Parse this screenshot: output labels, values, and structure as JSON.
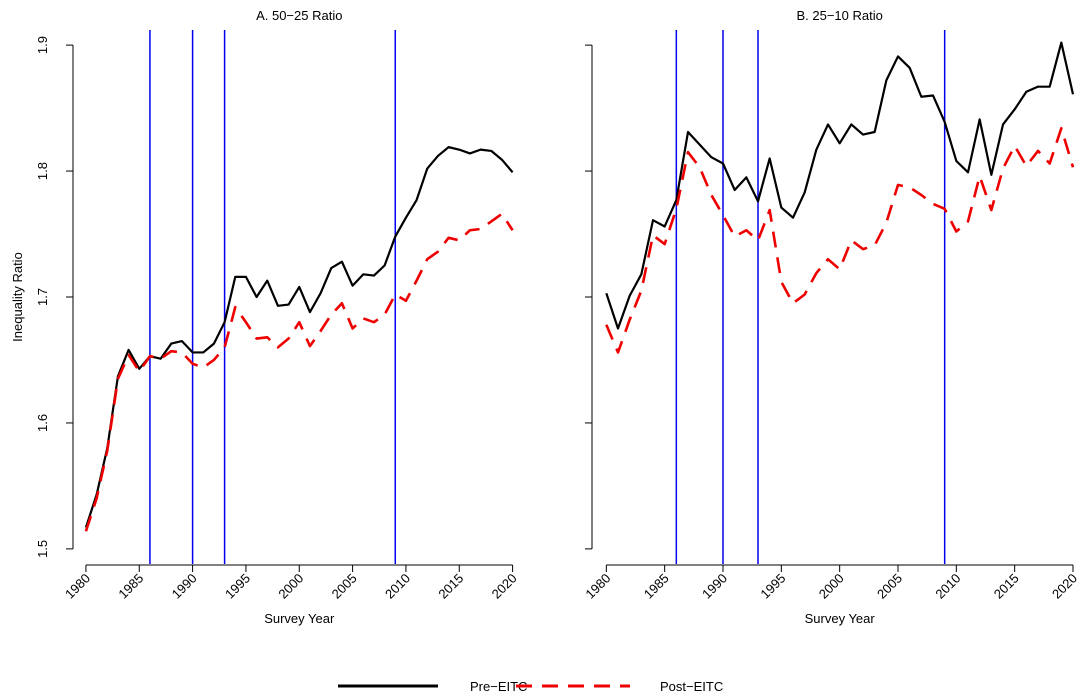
{
  "chart_data": [
    {
      "type": "line",
      "title": "A. 50−25 Ratio",
      "x_label": "Survey Year",
      "y_label": "Inequality Ratio",
      "x": [
        1980,
        1981,
        1982,
        1983,
        1984,
        1985,
        1986,
        1987,
        1988,
        1989,
        1990,
        1991,
        1992,
        1993,
        1994,
        1995,
        1996,
        1997,
        1998,
        1999,
        2000,
        2001,
        2002,
        2003,
        2004,
        2005,
        2006,
        2007,
        2008,
        2009,
        2010,
        2011,
        2012,
        2013,
        2014,
        2015,
        2016,
        2017,
        2018,
        2019,
        2020
      ],
      "xlim": [
        1978.6,
        2020.6
      ],
      "xticks": [
        1980,
        1985,
        1990,
        1995,
        2000,
        2005,
        2010,
        2015,
        2020
      ],
      "ylim": [
        1.488,
        1.912
      ],
      "yticks": [
        1.5,
        1.6,
        1.7,
        1.8,
        1.9
      ],
      "vlines": [
        1986,
        1990,
        1993,
        2009
      ],
      "vline_color": "#0000ee",
      "series": [
        {
          "name": "Pre−EITC",
          "color": "#000000",
          "style": "solid",
          "values": [
            1.517,
            1.543,
            1.58,
            1.637,
            1.658,
            1.643,
            1.653,
            1.651,
            1.663,
            1.665,
            1.656,
            1.656,
            1.663,
            1.68,
            1.716,
            1.716,
            1.7,
            1.713,
            1.693,
            1.694,
            1.708,
            1.688,
            1.703,
            1.723,
            1.728,
            1.709,
            1.718,
            1.717,
            1.725,
            1.748,
            1.763,
            1.777,
            1.802,
            1.812,
            1.819,
            1.817,
            1.814,
            1.817,
            1.816,
            1.809,
            1.799
          ]
        },
        {
          "name": "Post−EITC",
          "color": "#ee0000",
          "style": "dashed",
          "values": [
            1.514,
            1.54,
            1.578,
            1.635,
            1.654,
            1.641,
            1.653,
            1.651,
            1.657,
            1.656,
            1.647,
            1.644,
            1.65,
            1.66,
            1.692,
            1.68,
            1.667,
            1.668,
            1.66,
            1.667,
            1.68,
            1.661,
            1.673,
            1.686,
            1.695,
            1.675,
            1.683,
            1.68,
            1.686,
            1.702,
            1.697,
            1.713,
            1.73,
            1.736,
            1.747,
            1.745,
            1.753,
            1.754,
            1.76,
            1.766,
            1.753
          ]
        }
      ]
    },
    {
      "type": "line",
      "title": "B. 25−10 Ratio",
      "x_label": "Survey Year",
      "x": [
        1980,
        1981,
        1982,
        1983,
        1984,
        1985,
        1986,
        1987,
        1988,
        1989,
        1990,
        1991,
        1992,
        1993,
        1994,
        1995,
        1996,
        1997,
        1998,
        1999,
        2000,
        2001,
        2002,
        2003,
        2004,
        2005,
        2006,
        2007,
        2008,
        2009,
        2010,
        2011,
        2012,
        2013,
        2014,
        2015,
        2016,
        2017,
        2018,
        2019,
        2020
      ],
      "xlim": [
        1978.6,
        2020.6
      ],
      "xticks": [
        1980,
        1985,
        1990,
        1995,
        2000,
        2005,
        2010,
        2015,
        2020
      ],
      "ylim": [
        1.488,
        1.912
      ],
      "vlines": [
        1986,
        1990,
        1993,
        2009
      ],
      "vline_color": "#0000ee",
      "series": [
        {
          "color": "#000000",
          "style": "solid",
          "values": [
            1.703,
            1.675,
            1.701,
            1.718,
            1.761,
            1.756,
            1.777,
            1.831,
            1.821,
            1.811,
            1.806,
            1.785,
            1.795,
            1.776,
            1.81,
            1.771,
            1.763,
            1.783,
            1.817,
            1.837,
            1.822,
            1.837,
            1.829,
            1.831,
            1.872,
            1.891,
            1.882,
            1.859,
            1.86,
            1.839,
            1.808,
            1.799,
            1.841,
            1.797,
            1.837,
            1.849,
            1.863,
            1.867,
            1.867,
            1.902,
            1.861
          ]
        },
        {
          "color": "#ee0000",
          "style": "dashed",
          "values": [
            1.678,
            1.656,
            1.682,
            1.705,
            1.749,
            1.742,
            1.77,
            1.815,
            1.803,
            1.781,
            1.765,
            1.748,
            1.753,
            1.745,
            1.769,
            1.712,
            1.695,
            1.702,
            1.719,
            1.73,
            1.722,
            1.745,
            1.738,
            1.741,
            1.759,
            1.789,
            1.787,
            1.781,
            1.774,
            1.77,
            1.752,
            1.76,
            1.796,
            1.769,
            1.802,
            1.82,
            1.804,
            1.816,
            1.806,
            1.834,
            1.803
          ]
        }
      ]
    }
  ]
}
